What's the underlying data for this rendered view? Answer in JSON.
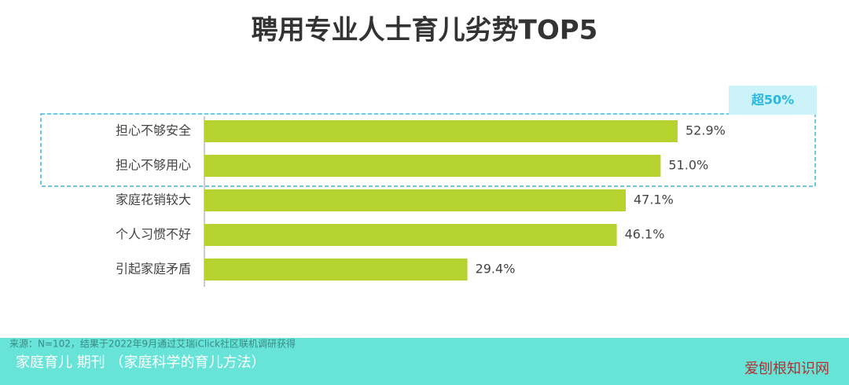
{
  "chart_data": {
    "type": "bar",
    "orientation": "horizontal",
    "title": "聘用专业人士育儿劣势TOP5",
    "categories": [
      "担心不够安全",
      "担心不够用心",
      "家庭花销较大",
      "个人习惯不好",
      "引起家庭矛盾"
    ],
    "values": [
      52.9,
      51.0,
      47.1,
      46.1,
      29.4
    ],
    "value_labels": [
      "52.9%",
      "51.0%",
      "47.1%",
      "46.1%",
      "29.4%"
    ],
    "color": "#b5d22e",
    "annotation": "超50%",
    "source": "来源：N=102，结果于2022年9月通过艾瑞iClick社区联机调研获得"
  },
  "caption": "家庭育儿  期刊 （家庭科学的育儿方法）",
  "watermark": "爱刨根知识网"
}
